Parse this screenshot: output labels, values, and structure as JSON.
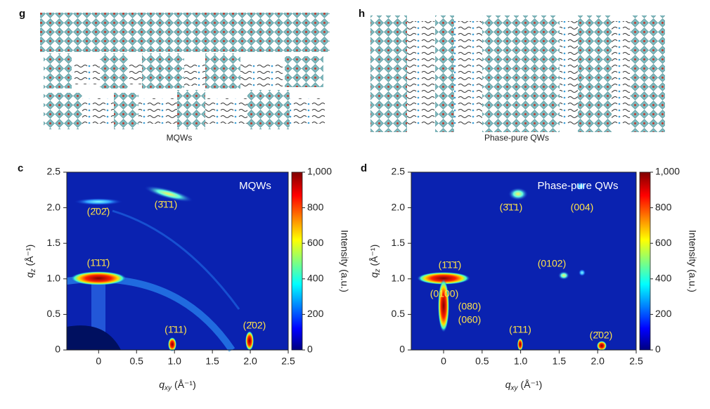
{
  "schematics": [
    {
      "label": "g",
      "caption": "MQWs"
    },
    {
      "label": "h",
      "caption": "Phase-pure QWs"
    }
  ],
  "plots": [
    {
      "label": "c",
      "inset": "MQWs",
      "xlim": [
        -0.42,
        2.5
      ],
      "ylim": [
        0,
        2.5
      ],
      "xticks": [
        0,
        0.5,
        {
          "value": 1,
          "label": "1.0"
        },
        1.5,
        {
          "value": 2,
          "label": "2.0"
        },
        2.5
      ],
      "yticks": [
        0,
        0.5,
        {
          "value": 1,
          "label": "1.0"
        },
        1.5,
        {
          "value": 2,
          "label": "2.0"
        },
        2.5
      ],
      "x_axis": {
        "symbol": "q",
        "sub": "xy",
        "unit": "(Å⁻¹)"
      },
      "y_axis": {
        "symbol": "q",
        "sub": "z",
        "unit": "(Å⁻¹)"
      },
      "colorbar": {
        "label": "Intensity (a.u.)",
        "lim": [
          0,
          1000
        ],
        "ticks": [
          0,
          200,
          400,
          600,
          800,
          {
            "value": 1000,
            "label": "1,000"
          }
        ]
      },
      "peaks": [
        "(2̄02̄)",
        "(3̄1̄1)",
        "(1̄1̄1̄)",
        "(1̄11)",
        "(2̄02)"
      ]
    },
    {
      "label": "d",
      "inset": "Phase-pure QWs",
      "xlim": [
        -0.42,
        2.5
      ],
      "ylim": [
        0,
        2.5
      ],
      "xticks": [
        0,
        0.5,
        {
          "value": 1,
          "label": "1.0"
        },
        1.5,
        {
          "value": 2,
          "label": "2.0"
        },
        2.5
      ],
      "yticks": [
        0,
        0.5,
        {
          "value": 1,
          "label": "1.0"
        },
        1.5,
        {
          "value": 2,
          "label": "2.0"
        },
        2.5
      ],
      "x_axis": {
        "symbol": "q",
        "sub": "xy",
        "unit": "(Å⁻¹)"
      },
      "y_axis": {
        "symbol": "q",
        "sub": "z",
        "unit": "(Å⁻¹)"
      },
      "colorbar": {
        "label": "Intensity (a.u.)",
        "lim": [
          0,
          1000
        ],
        "ticks": [
          0,
          200,
          400,
          600,
          800,
          {
            "value": 1000,
            "label": "1,000"
          }
        ]
      },
      "peaks": [
        "(3̄1̄1)",
        "(004)",
        "(0102)",
        "(1̄1̄1̄)",
        "(0100)",
        "(080)",
        "(060)",
        "(1̄11)",
        "(2̄02)"
      ]
    }
  ]
}
